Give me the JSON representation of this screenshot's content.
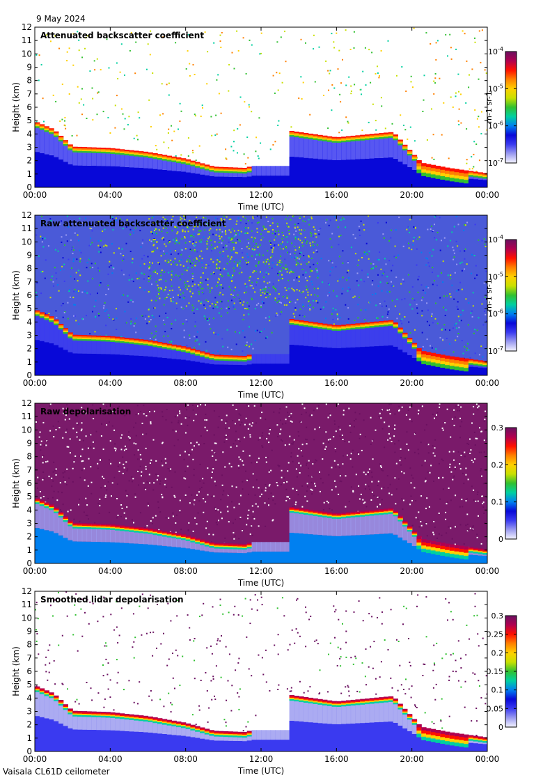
{
  "header": {
    "date": "9 May 2024"
  },
  "footer": {
    "instrument": "Vaisala CL61D ceilometer"
  },
  "chart_data": [
    {
      "type": "heatmap",
      "title": "Attenuated backscatter coefficient",
      "xlabel": "Time (UTC)",
      "ylabel": "Height (km)",
      "x_ticks": [
        "00:00",
        "04:00",
        "08:00",
        "12:00",
        "16:00",
        "20:00",
        "00:00"
      ],
      "x_range_hours": [
        0,
        24
      ],
      "y_ticks": [
        "0",
        "1",
        "2",
        "3",
        "4",
        "5",
        "6",
        "7",
        "8",
        "9",
        "10",
        "11",
        "12"
      ],
      "ylim": [
        0,
        12
      ],
      "colorbar": {
        "scale": "log",
        "range": [
          1e-07,
          0.0001
        ],
        "ticks": [
          "10-7",
          "10-6",
          "10-5",
          "10-4"
        ],
        "unit": "m-1 sr-1"
      },
      "cloud_layer_base_km": [
        {
          "hour": 0,
          "height": 4.9
        },
        {
          "hour": 1,
          "height": 4.3
        },
        {
          "hour": 2,
          "height": 3.0
        },
        {
          "hour": 4,
          "height": 2.9
        },
        {
          "hour": 6,
          "height": 2.6
        },
        {
          "hour": 8,
          "height": 2.1
        },
        {
          "hour": 9.5,
          "height": 1.5
        },
        {
          "hour": 11.3,
          "height": 1.4
        },
        {
          "hour": 13.5,
          "height": 4.2
        },
        {
          "hour": 16,
          "height": 3.7
        },
        {
          "hour": 19,
          "height": 4.1
        },
        {
          "hour": 20.5,
          "height": 1.8
        },
        {
          "hour": 22,
          "height": 1.4
        },
        {
          "hour": 23.5,
          "height": 1.1
        },
        {
          "hour": 24,
          "height": 1.0
        }
      ]
    },
    {
      "type": "heatmap",
      "title": "Raw attenuated backscatter coefficient",
      "xlabel": "Time (UTC)",
      "ylabel": "Height (km)",
      "x_ticks": [
        "00:00",
        "04:00",
        "08:00",
        "12:00",
        "16:00",
        "20:00",
        "00:00"
      ],
      "x_range_hours": [
        0,
        24
      ],
      "y_ticks": [
        "0",
        "1",
        "2",
        "3",
        "4",
        "5",
        "6",
        "7",
        "8",
        "9",
        "10",
        "11",
        "12"
      ],
      "ylim": [
        0,
        12
      ],
      "colorbar": {
        "scale": "log",
        "range": [
          1e-07,
          0.0001
        ],
        "ticks": [
          "10-7",
          "10-6",
          "10-5",
          "10-4"
        ],
        "unit": "m-1 sr-1"
      }
    },
    {
      "type": "heatmap",
      "title": "Raw depolarisation",
      "xlabel": "Time (UTC)",
      "ylabel": "Height (km)",
      "x_ticks": [
        "00:00",
        "04:00",
        "08:00",
        "12:00",
        "16:00",
        "20:00",
        "00:00"
      ],
      "x_range_hours": [
        0,
        24
      ],
      "y_ticks": [
        "0",
        "1",
        "2",
        "3",
        "4",
        "5",
        "6",
        "7",
        "8",
        "9",
        "10",
        "11",
        "12"
      ],
      "ylim": [
        0,
        12
      ],
      "colorbar": {
        "scale": "linear",
        "range": [
          0,
          0.3
        ],
        "ticks": [
          "0",
          "0.1",
          "0.2",
          "0.3"
        ],
        "unit": ""
      }
    },
    {
      "type": "heatmap",
      "title": "Smoothed lidar depolarisation",
      "xlabel": "Time (UTC)",
      "ylabel": "Height (km)",
      "x_ticks": [
        "00:00",
        "04:00",
        "08:00",
        "12:00",
        "16:00",
        "20:00",
        "00:00"
      ],
      "x_range_hours": [
        0,
        24
      ],
      "y_ticks": [
        "0",
        "1",
        "2",
        "3",
        "4",
        "5",
        "6",
        "7",
        "8",
        "9",
        "10",
        "11",
        "12"
      ],
      "ylim": [
        0,
        12
      ],
      "colorbar": {
        "scale": "linear",
        "range": [
          0,
          0.3
        ],
        "ticks": [
          "0",
          "0.05",
          "0.1",
          "0.15",
          "0.2",
          "0.25",
          "0.3"
        ],
        "unit": ""
      }
    }
  ],
  "colors": {
    "colormap": [
      "#f4f4ff",
      "#9c9cf0",
      "#3a3af0",
      "#0808d8",
      "#0080f0",
      "#00d0a0",
      "#30c030",
      "#c8e000",
      "#ffd000",
      "#ff8000",
      "#ff1000",
      "#b00050",
      "#6a1060"
    ],
    "axis": "#000000"
  }
}
